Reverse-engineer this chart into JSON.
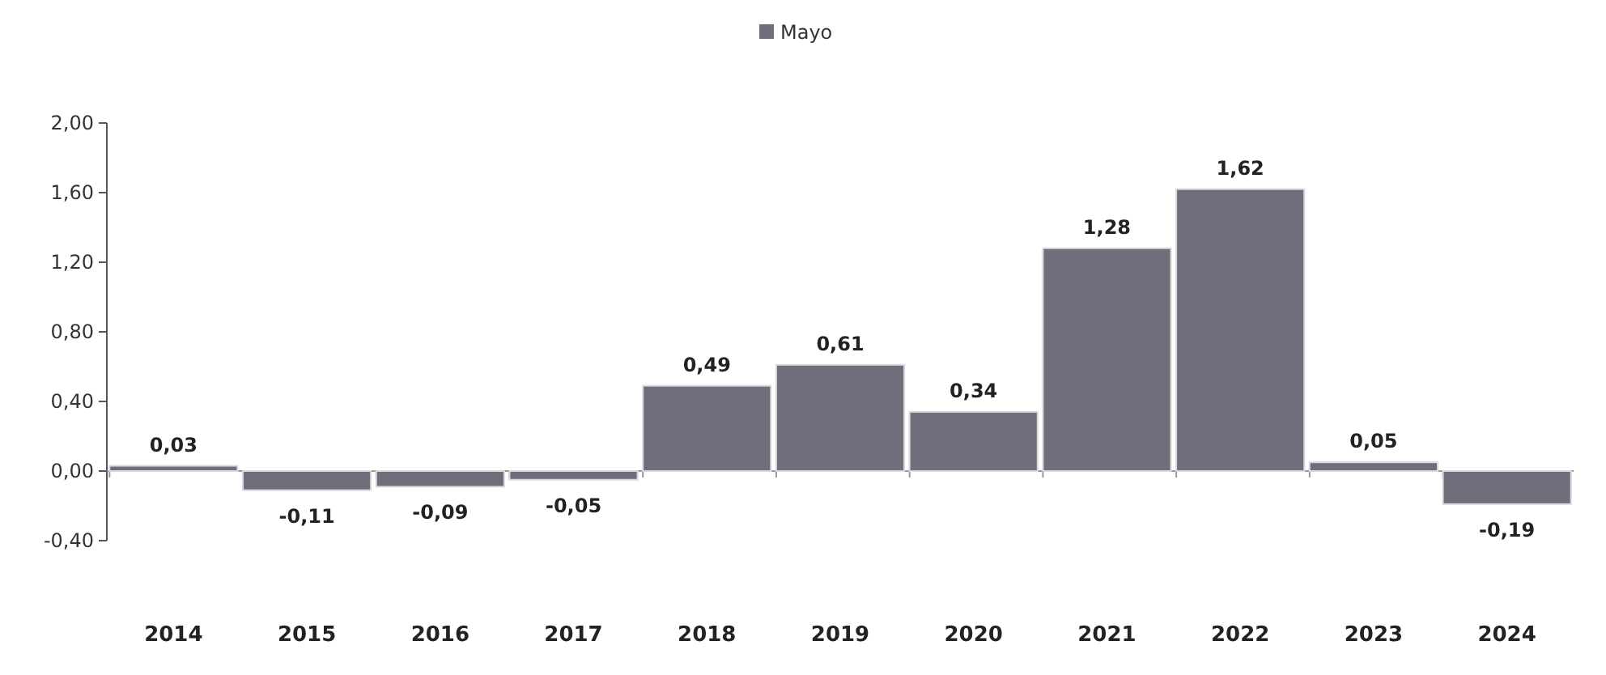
{
  "chart_data": {
    "type": "bar",
    "categories": [
      "2014",
      "2015",
      "2016",
      "2017",
      "2018",
      "2019",
      "2020",
      "2021",
      "2022",
      "2023",
      "2024"
    ],
    "series": [
      {
        "name": "Mayo",
        "color": "#6f6f7c",
        "values": [
          0.03,
          -0.11,
          -0.09,
          -0.05,
          0.49,
          0.61,
          0.34,
          1.28,
          1.62,
          0.05,
          -0.19
        ],
        "value_labels": [
          "0,03",
          "-0,11",
          "-0,09",
          "-0,05",
          "0,49",
          "0,61",
          "0,34",
          "1,28",
          "1,62",
          "0,05",
          "-0,19"
        ]
      }
    ],
    "ylim": [
      -0.4,
      2.0
    ],
    "yticks": [
      {
        "value": -0.4,
        "label": "-0,40"
      },
      {
        "value": 0,
        "label": "0,00"
      },
      {
        "value": 0.4,
        "label": "0,40"
      },
      {
        "value": 0.8,
        "label": "0,80"
      },
      {
        "value": 1.2,
        "label": "1,20"
      },
      {
        "value": 1.6,
        "label": "1,60"
      },
      {
        "value": 2.0,
        "label": "2,00"
      }
    ],
    "legend": "top"
  }
}
